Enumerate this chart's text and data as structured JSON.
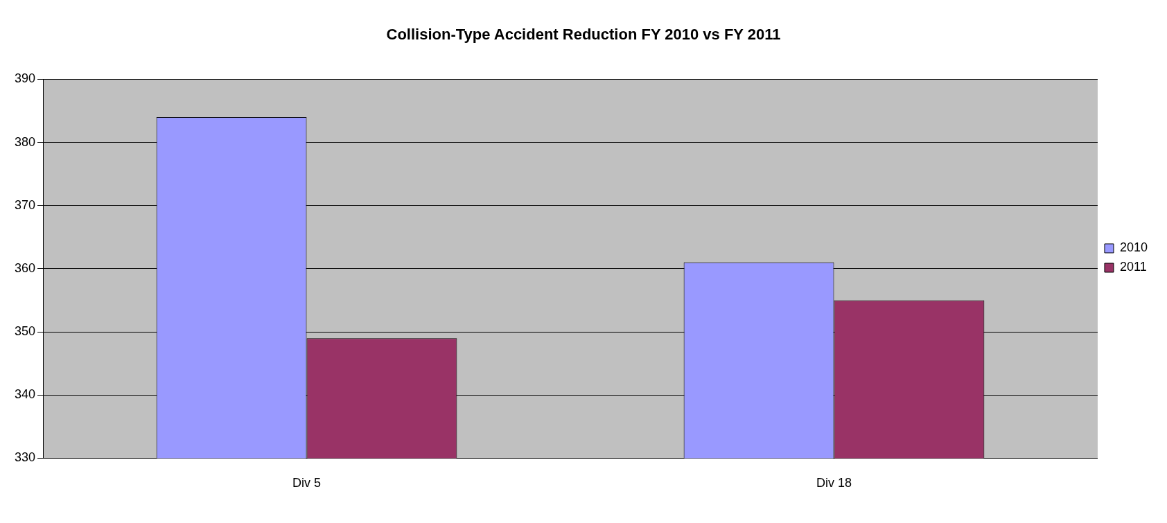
{
  "chart_data": {
    "type": "bar",
    "title": "Collision-Type Accident Reduction FY 2010 vs FY 2011",
    "categories": [
      "Div 5",
      "Div 18"
    ],
    "series": [
      {
        "name": "2010",
        "color": "#9999ff",
        "values": [
          384,
          361
        ]
      },
      {
        "name": "2011",
        "color": "#993366",
        "values": [
          349,
          355
        ]
      }
    ],
    "ylim": [
      330,
      390
    ],
    "yticks": [
      330,
      340,
      350,
      360,
      370,
      380,
      390
    ],
    "grid": "y",
    "legend": "right"
  }
}
